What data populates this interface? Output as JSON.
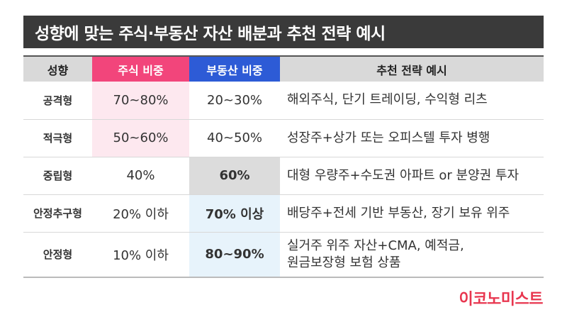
{
  "title": "성향에 맞는 주식·부동산 자산 배분과 추천 전략 예시",
  "headers": [
    "성향",
    "주식 비중",
    "부동산 비중",
    "추천 전략 예시"
  ],
  "rows": [
    {
      "type": "공격형",
      "stock": "70~80%",
      "real_estate": "20~30%",
      "strategy": [
        "해외주식, 단기 트레이딩, 수익형 리츠"
      ]
    },
    {
      "type": "적극형",
      "stock": "50~60%",
      "real_estate": "40~50%",
      "strategy": [
        "성장주+상가 또는 오피스텔 투자 병행"
      ]
    },
    {
      "type": "중립형",
      "stock": "40%",
      "real_estate": "60%",
      "strategy": [
        "대형 우량주+수도권 아파트 or 분양권 투자"
      ]
    },
    {
      "type": "안정추구형",
      "stock": "20% 이하",
      "real_estate": "70% 이상",
      "strategy": [
        "배당주+전세 기반 부동산, 장기 보유 위주"
      ]
    },
    {
      "type": "안정형",
      "stock": "10% 이하",
      "real_estate": "80~90%",
      "strategy": [
        "실거주 위주 자산+CMA, 예적금,",
        "원금보장형 보험 상품"
      ]
    }
  ],
  "brand": "이코노미스트",
  "colors": {
    "pink": "#e8406f",
    "blue": "#1f56c8",
    "title_bg": "#3a3a3a"
  }
}
